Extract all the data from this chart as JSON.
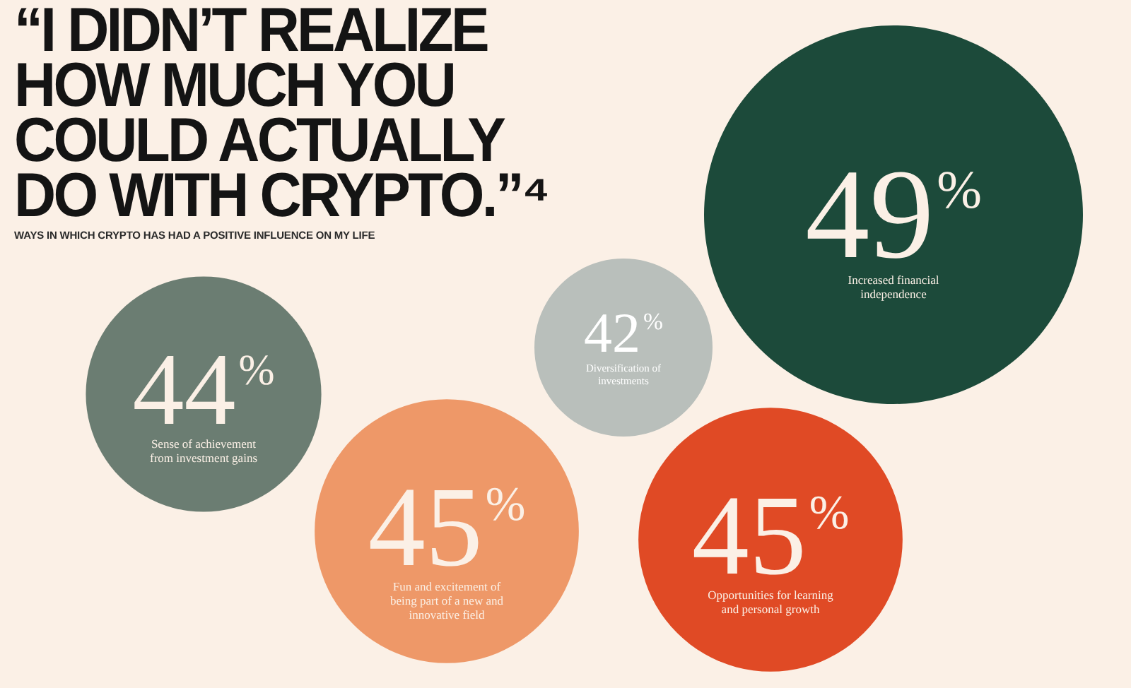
{
  "chart_data": {
    "type": "other",
    "title": "“I DIDN’T REALIZE HOW MUCH YOU COULD ACTUALLY DO WITH CRYPTO.”⁴",
    "subtitle": "WAYS IN WHICH CRYPTO HAS HAD A POSITIVE INFLUENCE ON MY LIFE",
    "categories": [
      "Sense of achievement from investment gains",
      "Fun and excitement of being part of a new and innovative field",
      "Diversification of investments",
      "Opportunities for learning and personal growth",
      "Increased financial independence"
    ],
    "values": [
      44,
      45,
      42,
      45,
      49
    ],
    "value_labels": [
      "44%",
      "45%",
      "42%",
      "45%",
      "49%"
    ],
    "colors": [
      "#6b7d72",
      "#ee9868",
      "#b9bfbb",
      "#e04a25",
      "#1c4a3a"
    ]
  }
}
